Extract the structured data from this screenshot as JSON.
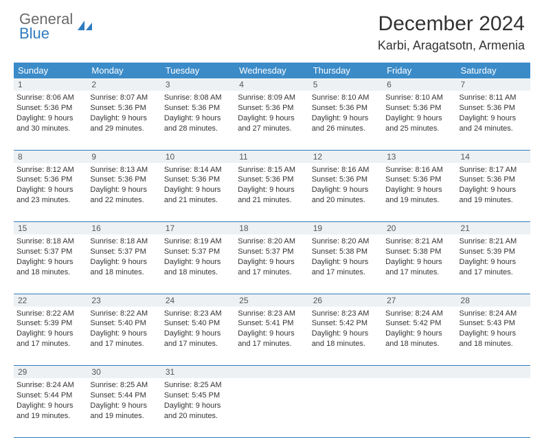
{
  "brand": {
    "word1": "General",
    "word2": "Blue",
    "word1_color": "#6a6a6a",
    "word2_color": "#2f7bbf",
    "icon_color": "#2f7bbf"
  },
  "title": "December 2024",
  "location": "Karbi, Aragatsotn, Armenia",
  "header_bg": "#3b8bc8",
  "header_fg": "#ffffff",
  "daynum_bg": "#eef1f3",
  "rule_color": "#2f7bbf",
  "weekdays": [
    "Sunday",
    "Monday",
    "Tuesday",
    "Wednesday",
    "Thursday",
    "Friday",
    "Saturday"
  ],
  "weeks": [
    [
      {
        "n": "1",
        "sr": "8:06 AM",
        "ss": "5:36 PM",
        "dl": "9 hours and 30 minutes."
      },
      {
        "n": "2",
        "sr": "8:07 AM",
        "ss": "5:36 PM",
        "dl": "9 hours and 29 minutes."
      },
      {
        "n": "3",
        "sr": "8:08 AM",
        "ss": "5:36 PM",
        "dl": "9 hours and 28 minutes."
      },
      {
        "n": "4",
        "sr": "8:09 AM",
        "ss": "5:36 PM",
        "dl": "9 hours and 27 minutes."
      },
      {
        "n": "5",
        "sr": "8:10 AM",
        "ss": "5:36 PM",
        "dl": "9 hours and 26 minutes."
      },
      {
        "n": "6",
        "sr": "8:10 AM",
        "ss": "5:36 PM",
        "dl": "9 hours and 25 minutes."
      },
      {
        "n": "7",
        "sr": "8:11 AM",
        "ss": "5:36 PM",
        "dl": "9 hours and 24 minutes."
      }
    ],
    [
      {
        "n": "8",
        "sr": "8:12 AM",
        "ss": "5:36 PM",
        "dl": "9 hours and 23 minutes."
      },
      {
        "n": "9",
        "sr": "8:13 AM",
        "ss": "5:36 PM",
        "dl": "9 hours and 22 minutes."
      },
      {
        "n": "10",
        "sr": "8:14 AM",
        "ss": "5:36 PM",
        "dl": "9 hours and 21 minutes."
      },
      {
        "n": "11",
        "sr": "8:15 AM",
        "ss": "5:36 PM",
        "dl": "9 hours and 21 minutes."
      },
      {
        "n": "12",
        "sr": "8:16 AM",
        "ss": "5:36 PM",
        "dl": "9 hours and 20 minutes."
      },
      {
        "n": "13",
        "sr": "8:16 AM",
        "ss": "5:36 PM",
        "dl": "9 hours and 19 minutes."
      },
      {
        "n": "14",
        "sr": "8:17 AM",
        "ss": "5:36 PM",
        "dl": "9 hours and 19 minutes."
      }
    ],
    [
      {
        "n": "15",
        "sr": "8:18 AM",
        "ss": "5:37 PM",
        "dl": "9 hours and 18 minutes."
      },
      {
        "n": "16",
        "sr": "8:18 AM",
        "ss": "5:37 PM",
        "dl": "9 hours and 18 minutes."
      },
      {
        "n": "17",
        "sr": "8:19 AM",
        "ss": "5:37 PM",
        "dl": "9 hours and 18 minutes."
      },
      {
        "n": "18",
        "sr": "8:20 AM",
        "ss": "5:37 PM",
        "dl": "9 hours and 17 minutes."
      },
      {
        "n": "19",
        "sr": "8:20 AM",
        "ss": "5:38 PM",
        "dl": "9 hours and 17 minutes."
      },
      {
        "n": "20",
        "sr": "8:21 AM",
        "ss": "5:38 PM",
        "dl": "9 hours and 17 minutes."
      },
      {
        "n": "21",
        "sr": "8:21 AM",
        "ss": "5:39 PM",
        "dl": "9 hours and 17 minutes."
      }
    ],
    [
      {
        "n": "22",
        "sr": "8:22 AM",
        "ss": "5:39 PM",
        "dl": "9 hours and 17 minutes."
      },
      {
        "n": "23",
        "sr": "8:22 AM",
        "ss": "5:40 PM",
        "dl": "9 hours and 17 minutes."
      },
      {
        "n": "24",
        "sr": "8:23 AM",
        "ss": "5:40 PM",
        "dl": "9 hours and 17 minutes."
      },
      {
        "n": "25",
        "sr": "8:23 AM",
        "ss": "5:41 PM",
        "dl": "9 hours and 17 minutes."
      },
      {
        "n": "26",
        "sr": "8:23 AM",
        "ss": "5:42 PM",
        "dl": "9 hours and 18 minutes."
      },
      {
        "n": "27",
        "sr": "8:24 AM",
        "ss": "5:42 PM",
        "dl": "9 hours and 18 minutes."
      },
      {
        "n": "28",
        "sr": "8:24 AM",
        "ss": "5:43 PM",
        "dl": "9 hours and 18 minutes."
      }
    ],
    [
      {
        "n": "29",
        "sr": "8:24 AM",
        "ss": "5:44 PM",
        "dl": "9 hours and 19 minutes."
      },
      {
        "n": "30",
        "sr": "8:25 AM",
        "ss": "5:44 PM",
        "dl": "9 hours and 19 minutes."
      },
      {
        "n": "31",
        "sr": "8:25 AM",
        "ss": "5:45 PM",
        "dl": "9 hours and 20 minutes."
      },
      null,
      null,
      null,
      null
    ]
  ],
  "labels": {
    "sunrise": "Sunrise:",
    "sunset": "Sunset:",
    "daylight": "Daylight:"
  }
}
